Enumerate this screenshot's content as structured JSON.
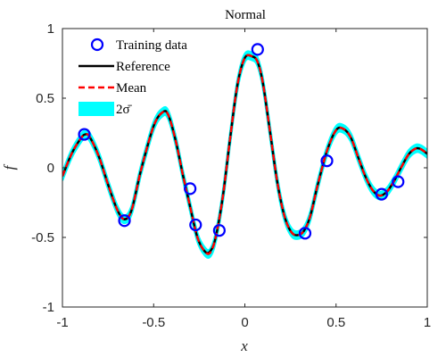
{
  "chart_data": {
    "type": "line",
    "title": "Normal",
    "xlabel": "x",
    "ylabel": "f",
    "xlim": [
      -1,
      1
    ],
    "ylim": [
      -1,
      1
    ],
    "xticks": [
      -1,
      -0.5,
      0,
      0.5,
      1
    ],
    "xtick_labels": [
      "-1",
      "-0.5",
      "0",
      "0.5",
      "1"
    ],
    "yticks": [
      -1,
      -0.5,
      0,
      0.5,
      1
    ],
    "ytick_labels": [
      "-1",
      "-0.5",
      "0",
      "0.5",
      "1"
    ],
    "grid": false,
    "legend_position": "top-left",
    "legend": [
      {
        "label": "Training data",
        "kind": "marker",
        "color": "#0000ff"
      },
      {
        "label": "Reference",
        "kind": "line",
        "color": "#000000"
      },
      {
        "label": "Mean",
        "kind": "dashed-line",
        "color": "#ff0000"
      },
      {
        "label": "2σ̄",
        "kind": "band",
        "color": "#00ffff"
      }
    ],
    "band_halfwidth": 0.025,
    "series": [
      {
        "name": "Reference",
        "color": "#000000",
        "x": [
          -1.0,
          -0.95,
          -0.9,
          -0.875,
          -0.85,
          -0.8,
          -0.75,
          -0.7,
          -0.66,
          -0.62,
          -0.57,
          -0.5,
          -0.45,
          -0.42,
          -0.38,
          -0.34,
          -0.3,
          -0.26,
          -0.22,
          -0.19,
          -0.16,
          -0.12,
          -0.08,
          -0.04,
          0.0,
          0.04,
          0.07,
          0.1,
          0.14,
          0.18,
          0.22,
          0.26,
          0.3,
          0.33,
          0.36,
          0.4,
          0.45,
          0.5,
          0.54,
          0.58,
          0.62,
          0.66,
          0.7,
          0.74,
          0.78,
          0.82,
          0.86,
          0.9,
          0.94,
          0.97,
          1.0
        ],
        "y": [
          -0.06,
          0.1,
          0.21,
          0.24,
          0.22,
          0.08,
          -0.12,
          -0.3,
          -0.37,
          -0.3,
          -0.02,
          0.3,
          0.4,
          0.38,
          0.2,
          -0.05,
          -0.28,
          -0.5,
          -0.6,
          -0.6,
          -0.5,
          -0.2,
          0.22,
          0.6,
          0.79,
          0.8,
          0.76,
          0.6,
          0.24,
          -0.12,
          -0.36,
          -0.47,
          -0.48,
          -0.44,
          -0.34,
          -0.12,
          0.12,
          0.27,
          0.28,
          0.22,
          0.08,
          -0.06,
          -0.16,
          -0.2,
          -0.17,
          -0.09,
          0.01,
          0.1,
          0.14,
          0.13,
          0.1
        ]
      },
      {
        "name": "Mean",
        "color": "#ff0000",
        "x": [
          -1.0,
          -0.95,
          -0.9,
          -0.875,
          -0.85,
          -0.8,
          -0.75,
          -0.7,
          -0.66,
          -0.62,
          -0.57,
          -0.5,
          -0.45,
          -0.42,
          -0.38,
          -0.34,
          -0.3,
          -0.26,
          -0.22,
          -0.19,
          -0.16,
          -0.12,
          -0.08,
          -0.04,
          0.0,
          0.04,
          0.07,
          0.1,
          0.14,
          0.18,
          0.22,
          0.26,
          0.3,
          0.33,
          0.36,
          0.4,
          0.45,
          0.5,
          0.54,
          0.58,
          0.62,
          0.66,
          0.7,
          0.74,
          0.78,
          0.82,
          0.86,
          0.9,
          0.94,
          0.97,
          1.0
        ],
        "y": [
          -0.06,
          0.1,
          0.21,
          0.24,
          0.22,
          0.08,
          -0.12,
          -0.3,
          -0.37,
          -0.3,
          -0.02,
          0.3,
          0.4,
          0.38,
          0.2,
          -0.05,
          -0.28,
          -0.5,
          -0.6,
          -0.61,
          -0.5,
          -0.2,
          0.22,
          0.6,
          0.79,
          0.8,
          0.76,
          0.6,
          0.24,
          -0.12,
          -0.36,
          -0.47,
          -0.48,
          -0.44,
          -0.34,
          -0.12,
          0.12,
          0.27,
          0.28,
          0.22,
          0.08,
          -0.06,
          -0.16,
          -0.2,
          -0.17,
          -0.09,
          0.01,
          0.1,
          0.14,
          0.13,
          0.1
        ]
      },
      {
        "name": "Training data",
        "type": "scatter",
        "color": "#0000ff",
        "x": [
          -0.88,
          -0.66,
          -0.3,
          -0.27,
          -0.14,
          0.07,
          0.33,
          0.45,
          0.75,
          0.84
        ],
        "y": [
          0.24,
          -0.38,
          -0.15,
          -0.41,
          -0.45,
          0.85,
          -0.47,
          0.05,
          -0.19,
          -0.1
        ]
      }
    ]
  }
}
